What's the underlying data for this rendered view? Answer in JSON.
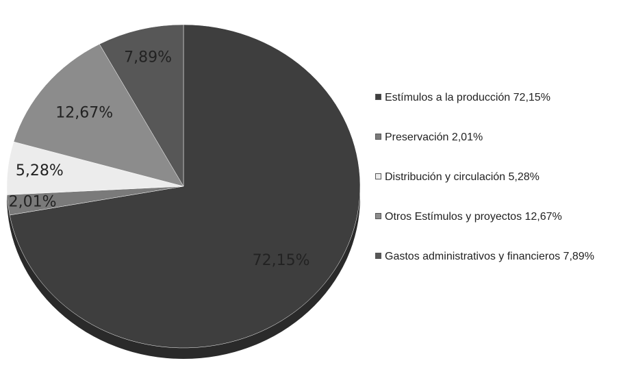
{
  "chart_data": {
    "type": "pie",
    "categories": [
      "Estímulos a la producción 72,15%",
      "Preservación 2,01%",
      "Distribución y circulación 5,28%",
      "Otros Estímulos y proyectos 12,67%",
      "Gastos administrativos y financieros 7,89%"
    ],
    "values": [
      72.15,
      2.01,
      5.28,
      12.67,
      7.89
    ],
    "value_labels": [
      "72,15%",
      "2,01%",
      "5,28%",
      "12,67%",
      "7,89%"
    ],
    "colors": [
      "#3e3e3e",
      "#7a7a7a",
      "#ececec",
      "#8c8c8c",
      "#575757"
    ],
    "legend": "right"
  }
}
